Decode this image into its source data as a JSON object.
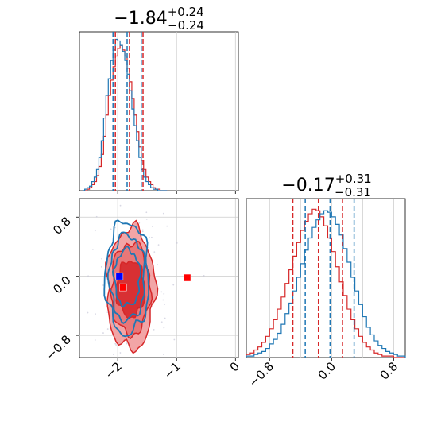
{
  "chart_data": {
    "type": "corner",
    "colors": {
      "series_a": "#1f77b4",
      "series_b": "#d62728"
    },
    "panels": [
      {
        "kind": "histogram",
        "parameter_index": 0,
        "title": {
          "median": "−1.84",
          "upper": "+0.24",
          "lower": "−0.24"
        },
        "xlim": [
          -2.65,
          0.05
        ],
        "grid_x": [
          -2,
          -1,
          0
        ],
        "quantiles_blue": [
          -2.08,
          -1.84,
          -1.6
        ],
        "quantiles_red": [
          -2.04,
          -1.8,
          -1.57
        ],
        "bins_x": [
          -2.6,
          -2.56,
          -2.52,
          -2.48,
          -2.44,
          -2.4,
          -2.36,
          -2.32,
          -2.28,
          -2.24,
          -2.2,
          -2.16,
          -2.12,
          -2.08,
          -2.04,
          -2.0,
          -1.96,
          -1.92,
          -1.88,
          -1.84,
          -1.8,
          -1.76,
          -1.72,
          -1.68,
          -1.64,
          -1.6,
          -1.56,
          -1.52,
          -1.48,
          -1.44,
          -1.4,
          -1.36,
          -1.32,
          -1.28,
          -1.24,
          -1.2,
          -1.16
        ],
        "hist_blue": [
          0,
          1,
          2,
          3,
          6,
          9,
          14,
          22,
          33,
          48,
          63,
          74,
          86,
          93,
          100,
          99,
          96,
          92,
          86,
          77,
          66,
          54,
          43,
          33,
          22,
          14,
          9,
          6,
          4,
          2,
          1,
          1,
          0,
          0,
          0,
          0
        ],
        "hist_red": [
          0,
          0,
          1,
          2,
          4,
          6,
          10,
          16,
          24,
          36,
          50,
          63,
          73,
          82,
          89,
          94,
          96,
          93,
          89,
          81,
          72,
          61,
          50,
          39,
          29,
          20,
          14,
          9,
          6,
          4,
          2,
          1,
          1,
          0,
          0,
          0
        ]
      },
      {
        "kind": "histogram",
        "parameter_index": 1,
        "title": {
          "median": "−0.17",
          "upper": "+0.31",
          "lower": "−0.31"
        },
        "xlim": [
          -1.1,
          0.95
        ],
        "ticks": [
          -0.8,
          0.0,
          0.8
        ],
        "tick_labels": [
          "−0.8",
          "0.0",
          "0.8"
        ],
        "quantiles_blue": [
          -0.34,
          -0.02,
          0.29
        ],
        "quantiles_red": [
          -0.5,
          -0.17,
          0.14
        ],
        "bins_x": [
          -1.1,
          -1.05,
          -1.0,
          -0.95,
          -0.9,
          -0.85,
          -0.8,
          -0.75,
          -0.7,
          -0.65,
          -0.6,
          -0.55,
          -0.5,
          -0.45,
          -0.4,
          -0.35,
          -0.3,
          -0.25,
          -0.2,
          -0.15,
          -0.1,
          -0.05,
          0.0,
          0.05,
          0.1,
          0.15,
          0.2,
          0.25,
          0.3,
          0.35,
          0.4,
          0.45,
          0.5,
          0.55,
          0.6,
          0.65,
          0.7,
          0.75,
          0.8,
          0.85,
          0.9,
          0.95
        ],
        "hist_blue": [
          1,
          1,
          2,
          3,
          4,
          6,
          9,
          12,
          16,
          22,
          29,
          36,
          44,
          53,
          62,
          71,
          79,
          86,
          91,
          95,
          97,
          96,
          93,
          88,
          81,
          72,
          63,
          53,
          44,
          35,
          27,
          20,
          15,
          11,
          8,
          6,
          4,
          3,
          2,
          1,
          1
        ],
        "hist_red": [
          2,
          3,
          5,
          7,
          10,
          14,
          19,
          25,
          32,
          40,
          49,
          58,
          67,
          76,
          84,
          90,
          95,
          98,
          97,
          93,
          87,
          79,
          70,
          60,
          50,
          41,
          32,
          25,
          19,
          14,
          10,
          7,
          5,
          3,
          2,
          1,
          1,
          1,
          0,
          0,
          0
        ]
      },
      {
        "kind": "2d-density",
        "xlim": [
          -2.65,
          0.05
        ],
        "ylim": [
          -1.1,
          1.05
        ],
        "xticks": [
          -2,
          -1,
          0
        ],
        "xtick_labels": [
          "−2",
          "−1",
          "0"
        ],
        "yticks": [
          -0.8,
          0.0,
          0.8
        ],
        "ytick_labels": [
          "−0.8",
          "0.0",
          "0.8"
        ],
        "blue_center": [
          -1.84,
          -0.02
        ],
        "red_center": [
          -1.78,
          -0.17
        ],
        "blue_contour_radii_xy": [
          [
            0.22,
            0.38
          ],
          [
            0.3,
            0.58
          ],
          [
            0.37,
            0.76
          ]
        ],
        "red_contour_radii_xy": [
          [
            0.24,
            0.38
          ],
          [
            0.33,
            0.62
          ],
          [
            0.41,
            0.82
          ]
        ],
        "markers": [
          {
            "series": "blue",
            "x": -1.97,
            "y": 0.0
          },
          {
            "series": "red",
            "x": -1.91,
            "y": -0.15
          },
          {
            "series": "red",
            "x": -0.82,
            "y": -0.02
          }
        ]
      }
    ]
  }
}
